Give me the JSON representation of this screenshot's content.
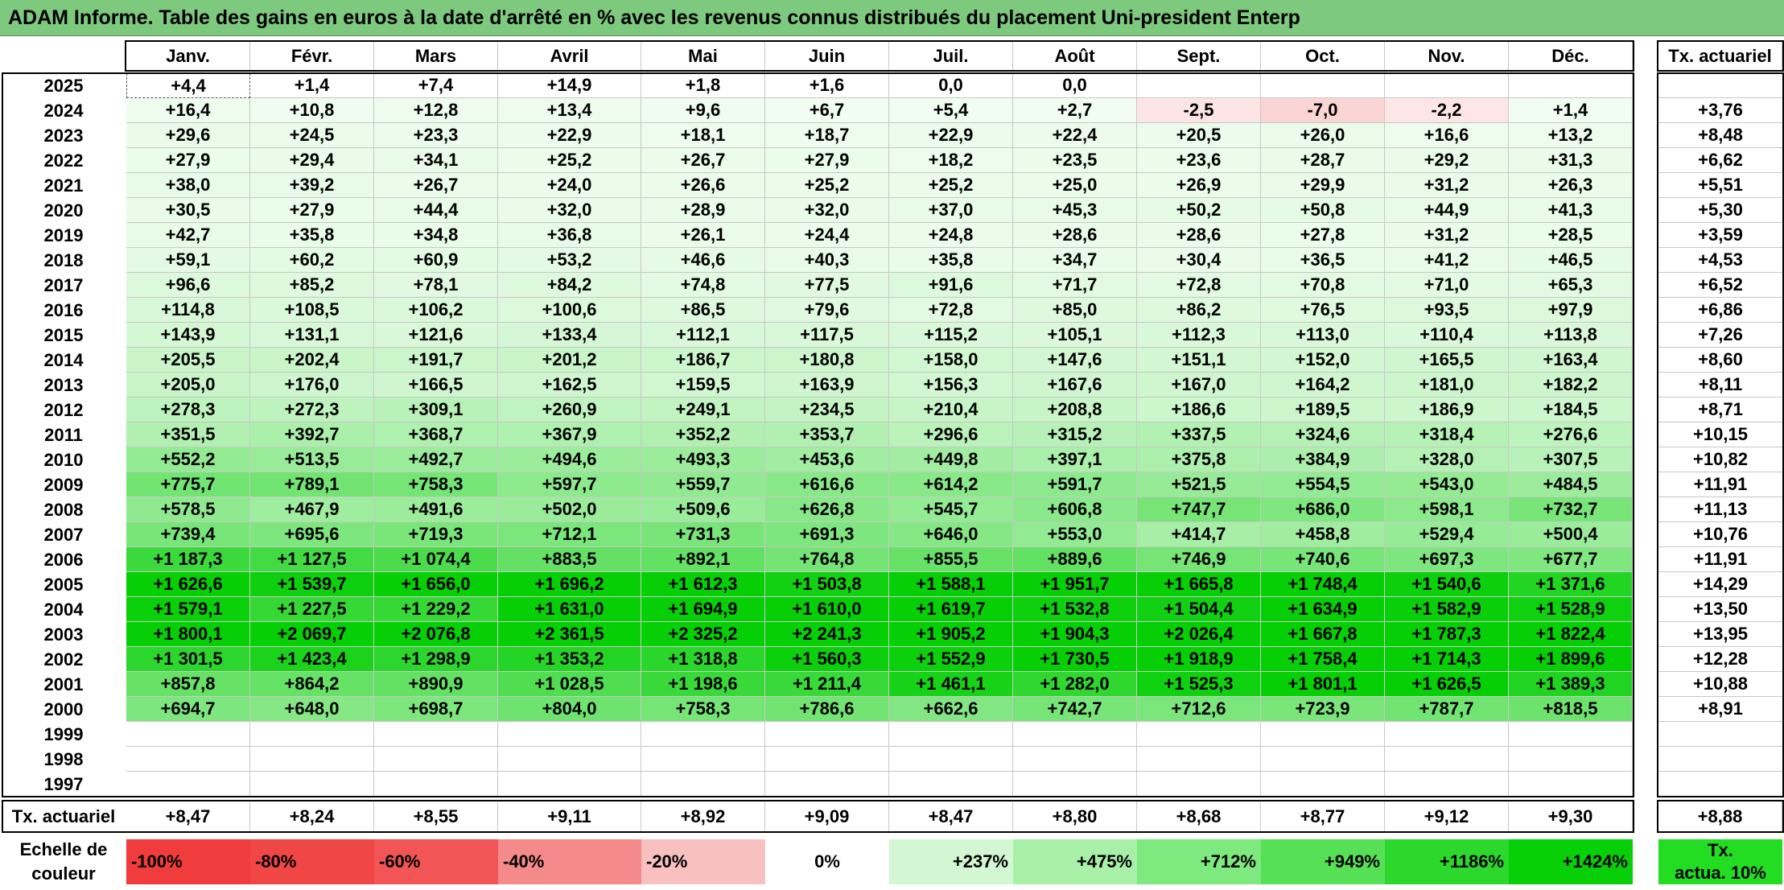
{
  "title": "ADAM Informe. Table des gains en euros à la date d'arrêté en % avec les revenus connus distribués du placement Uni-president Enterp",
  "chart_data": {
    "type": "table",
    "columns": [
      "Janv.",
      "Févr.",
      "Mars",
      "Avril",
      "Mai",
      "Juin",
      "Juil.",
      "Août",
      "Sept.",
      "Oct.",
      "Nov.",
      "Déc."
    ],
    "rate_header": "Tx. actuariel",
    "rows": [
      {
        "year": "2025",
        "values": [
          "+4,4",
          "+1,4",
          "+7,4",
          "+14,9",
          "+1,8",
          "+1,6",
          "0,0",
          "0,0",
          "",
          "",
          "",
          ""
        ],
        "rate": ""
      },
      {
        "year": "2024",
        "values": [
          "+16,4",
          "+10,8",
          "+12,8",
          "+13,4",
          "+9,6",
          "+6,7",
          "+5,4",
          "+2,7",
          "-2,5",
          "-7,0",
          "-2,2",
          "+1,4"
        ],
        "rate": "+3,76"
      },
      {
        "year": "2023",
        "values": [
          "+29,6",
          "+24,5",
          "+23,3",
          "+22,9",
          "+18,1",
          "+18,7",
          "+22,9",
          "+22,4",
          "+20,5",
          "+26,0",
          "+16,6",
          "+13,2"
        ],
        "rate": "+8,48"
      },
      {
        "year": "2022",
        "values": [
          "+27,9",
          "+29,4",
          "+34,1",
          "+25,2",
          "+26,7",
          "+27,9",
          "+18,2",
          "+23,5",
          "+23,6",
          "+28,7",
          "+29,2",
          "+31,3"
        ],
        "rate": "+6,62"
      },
      {
        "year": "2021",
        "values": [
          "+38,0",
          "+39,2",
          "+26,7",
          "+24,0",
          "+26,6",
          "+25,2",
          "+25,2",
          "+25,0",
          "+26,9",
          "+29,9",
          "+31,2",
          "+26,3"
        ],
        "rate": "+5,51"
      },
      {
        "year": "2020",
        "values": [
          "+30,5",
          "+27,9",
          "+44,4",
          "+32,0",
          "+28,9",
          "+32,0",
          "+37,0",
          "+45,3",
          "+50,2",
          "+50,8",
          "+44,9",
          "+41,3"
        ],
        "rate": "+5,30"
      },
      {
        "year": "2019",
        "values": [
          "+42,7",
          "+35,8",
          "+34,8",
          "+36,8",
          "+26,1",
          "+24,4",
          "+24,8",
          "+28,6",
          "+28,6",
          "+27,8",
          "+31,2",
          "+28,5"
        ],
        "rate": "+3,59"
      },
      {
        "year": "2018",
        "values": [
          "+59,1",
          "+60,2",
          "+60,9",
          "+53,2",
          "+46,6",
          "+40,3",
          "+35,8",
          "+34,7",
          "+30,4",
          "+36,5",
          "+41,2",
          "+46,5"
        ],
        "rate": "+4,53"
      },
      {
        "year": "2017",
        "values": [
          "+96,6",
          "+85,2",
          "+78,1",
          "+84,2",
          "+74,8",
          "+77,5",
          "+91,6",
          "+71,7",
          "+72,8",
          "+70,8",
          "+71,0",
          "+65,3"
        ],
        "rate": "+6,52"
      },
      {
        "year": "2016",
        "values": [
          "+114,8",
          "+108,5",
          "+106,2",
          "+100,6",
          "+86,5",
          "+79,6",
          "+72,8",
          "+85,0",
          "+86,2",
          "+76,5",
          "+93,5",
          "+97,9"
        ],
        "rate": "+6,86"
      },
      {
        "year": "2015",
        "values": [
          "+143,9",
          "+131,1",
          "+121,6",
          "+133,4",
          "+112,1",
          "+117,5",
          "+115,2",
          "+105,1",
          "+112,3",
          "+113,0",
          "+110,4",
          "+113,8"
        ],
        "rate": "+7,26"
      },
      {
        "year": "2014",
        "values": [
          "+205,5",
          "+202,4",
          "+191,7",
          "+201,2",
          "+186,7",
          "+180,8",
          "+158,0",
          "+147,6",
          "+151,1",
          "+152,0",
          "+165,5",
          "+163,4"
        ],
        "rate": "+8,60"
      },
      {
        "year": "2013",
        "values": [
          "+205,0",
          "+176,0",
          "+166,5",
          "+162,5",
          "+159,5",
          "+163,9",
          "+156,3",
          "+167,6",
          "+167,0",
          "+164,2",
          "+181,0",
          "+182,2"
        ],
        "rate": "+8,11"
      },
      {
        "year": "2012",
        "values": [
          "+278,3",
          "+272,3",
          "+309,1",
          "+260,9",
          "+249,1",
          "+234,5",
          "+210,4",
          "+208,8",
          "+186,6",
          "+189,5",
          "+186,9",
          "+184,5"
        ],
        "rate": "+8,71"
      },
      {
        "year": "2011",
        "values": [
          "+351,5",
          "+392,7",
          "+368,7",
          "+367,9",
          "+352,2",
          "+353,7",
          "+296,6",
          "+315,2",
          "+337,5",
          "+324,6",
          "+318,4",
          "+276,6"
        ],
        "rate": "+10,15"
      },
      {
        "year": "2010",
        "values": [
          "+552,2",
          "+513,5",
          "+492,7",
          "+494,6",
          "+493,3",
          "+453,6",
          "+449,8",
          "+397,1",
          "+375,8",
          "+384,9",
          "+328,0",
          "+307,5"
        ],
        "rate": "+10,82"
      },
      {
        "year": "2009",
        "values": [
          "+775,7",
          "+789,1",
          "+758,3",
          "+597,7",
          "+559,7",
          "+616,6",
          "+614,2",
          "+591,7",
          "+521,5",
          "+554,5",
          "+543,0",
          "+484,5"
        ],
        "rate": "+11,91"
      },
      {
        "year": "2008",
        "values": [
          "+578,5",
          "+467,9",
          "+491,6",
          "+502,0",
          "+509,6",
          "+626,8",
          "+545,7",
          "+606,8",
          "+747,7",
          "+686,0",
          "+598,1",
          "+732,7"
        ],
        "rate": "+11,13"
      },
      {
        "year": "2007",
        "values": [
          "+739,4",
          "+695,6",
          "+719,3",
          "+712,1",
          "+731,3",
          "+691,3",
          "+646,0",
          "+553,0",
          "+414,7",
          "+458,8",
          "+529,4",
          "+500,4"
        ],
        "rate": "+10,76"
      },
      {
        "year": "2006",
        "values": [
          "+1 187,3",
          "+1 127,5",
          "+1 074,4",
          "+883,5",
          "+892,1",
          "+764,8",
          "+855,5",
          "+889,6",
          "+746,9",
          "+740,6",
          "+697,3",
          "+677,7"
        ],
        "rate": "+11,91"
      },
      {
        "year": "2005",
        "values": [
          "+1 626,6",
          "+1 539,7",
          "+1 656,0",
          "+1 696,2",
          "+1 612,3",
          "+1 503,8",
          "+1 588,1",
          "+1 951,7",
          "+1 665,8",
          "+1 748,4",
          "+1 540,6",
          "+1 371,6"
        ],
        "rate": "+14,29"
      },
      {
        "year": "2004",
        "values": [
          "+1 579,1",
          "+1 227,5",
          "+1 229,2",
          "+1 631,0",
          "+1 694,9",
          "+1 610,0",
          "+1 619,7",
          "+1 532,8",
          "+1 504,4",
          "+1 634,9",
          "+1 582,9",
          "+1 528,9"
        ],
        "rate": "+13,50"
      },
      {
        "year": "2003",
        "values": [
          "+1 800,1",
          "+2 069,7",
          "+2 076,8",
          "+2 361,5",
          "+2 325,2",
          "+2 241,3",
          "+1 905,2",
          "+1 904,3",
          "+2 026,4",
          "+1 667,8",
          "+1 787,3",
          "+1 822,4"
        ],
        "rate": "+13,95"
      },
      {
        "year": "2002",
        "values": [
          "+1 301,5",
          "+1 423,4",
          "+1 298,9",
          "+1 353,2",
          "+1 318,8",
          "+1 560,3",
          "+1 552,9",
          "+1 730,5",
          "+1 918,9",
          "+1 758,4",
          "+1 714,3",
          "+1 899,6"
        ],
        "rate": "+12,28"
      },
      {
        "year": "2001",
        "values": [
          "+857,8",
          "+864,2",
          "+890,9",
          "+1 028,5",
          "+1 198,6",
          "+1 211,4",
          "+1 461,1",
          "+1 282,0",
          "+1 525,3",
          "+1 801,1",
          "+1 626,5",
          "+1 389,3"
        ],
        "rate": "+10,88"
      },
      {
        "year": "2000",
        "values": [
          "+694,7",
          "+648,0",
          "+698,7",
          "+804,0",
          "+758,3",
          "+786,6",
          "+662,6",
          "+742,7",
          "+712,6",
          "+723,9",
          "+787,7",
          "+818,5"
        ],
        "rate": "+8,91"
      },
      {
        "year": "1999",
        "values": [
          "",
          "",
          "",
          "",
          "",
          "",
          "",
          "",
          "",
          "",
          "",
          ""
        ],
        "rate": ""
      },
      {
        "year": "1998",
        "values": [
          "",
          "",
          "",
          "",
          "",
          "",
          "",
          "",
          "",
          "",
          "",
          ""
        ],
        "rate": ""
      },
      {
        "year": "1997",
        "values": [
          "",
          "",
          "",
          "",
          "",
          "",
          "",
          "",
          "",
          "",
          "",
          ""
        ],
        "rate": ""
      }
    ],
    "footer": {
      "label": "Tx. actuariel",
      "values": [
        "+8,47",
        "+8,24",
        "+8,55",
        "+9,11",
        "+8,92",
        "+9,09",
        "+8,47",
        "+8,80",
        "+8,68",
        "+8,77",
        "+9,12",
        "+9,30"
      ],
      "rate": "+8,88"
    },
    "legend": {
      "label_line1": "Echelle de",
      "label_line2": "couleur",
      "items": [
        {
          "text": "-100%",
          "color": "#f03c3c",
          "align": "left"
        },
        {
          "text": "-80%",
          "color": "#f04646",
          "align": "left"
        },
        {
          "text": "-60%",
          "color": "#f25555",
          "align": "left"
        },
        {
          "text": "-40%",
          "color": "#f58a8a",
          "align": "left"
        },
        {
          "text": "-20%",
          "color": "#f9c0c0",
          "align": "left"
        },
        {
          "text": "0%",
          "color": "#ffffff",
          "align": "center"
        },
        {
          "text": "+237%",
          "color": "#d2f7d2",
          "align": "right"
        },
        {
          "text": "+475%",
          "color": "#a8f0a8",
          "align": "right"
        },
        {
          "text": "+712%",
          "color": "#7ee97e",
          "align": "right"
        },
        {
          "text": "+949%",
          "color": "#55e055",
          "align": "right"
        },
        {
          "text": "+1186%",
          "color": "#2bd82b",
          "align": "right"
        },
        {
          "text": "+1424%",
          "color": "#08d008",
          "align": "right"
        }
      ],
      "rate_line1": "Tx.",
      "rate_line2": "actua. 10%",
      "rate_color": "#22dd22"
    }
  }
}
